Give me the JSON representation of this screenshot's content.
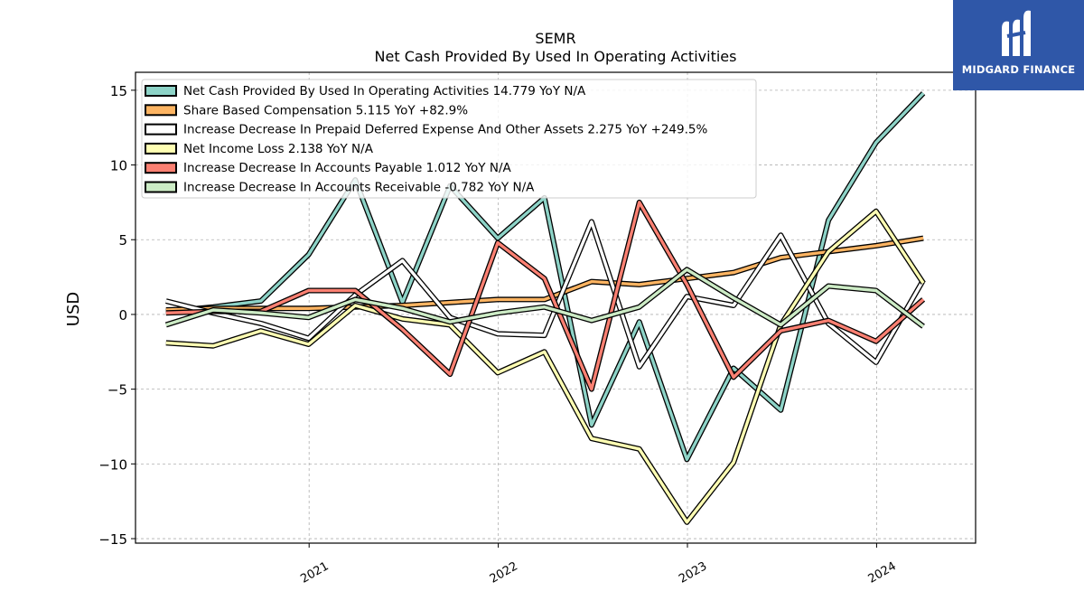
{
  "chart_data": {
    "type": "line",
    "title": "SEMR",
    "subtitle": "Net Cash Provided By Used In Operating Activities",
    "ylabel": "USD",
    "xlabel": "",
    "ylim": [
      -15.3,
      16.2
    ],
    "xlim": [
      "2020-02-01",
      "2024-07-10"
    ],
    "y_ticks": [
      15,
      10,
      5,
      0,
      -5,
      -10,
      -15
    ],
    "x_ticks": [
      {
        "date": "2021-01-01",
        "label": "2021"
      },
      {
        "date": "2022-01-01",
        "label": "2022"
      },
      {
        "date": "2023-01-01",
        "label": "2023"
      },
      {
        "date": "2024-01-01",
        "label": "2024"
      }
    ],
    "grid": true,
    "legend_position": "top-left",
    "x": [
      "2020-03-31",
      "2020-06-30",
      "2020-09-30",
      "2020-12-31",
      "2021-03-31",
      "2021-06-30",
      "2021-09-30",
      "2021-12-31",
      "2022-03-31",
      "2022-06-30",
      "2022-09-30",
      "2022-12-31",
      "2023-03-31",
      "2023-06-30",
      "2023-09-30",
      "2023-12-31",
      "2024-03-31"
    ],
    "series": [
      {
        "name": "Net Cash Provided By Used In Operating Activities",
        "legend": "Net Cash Provided By Used In Operating Activities  14.779 YoY N/A",
        "color": "#8dd3c7",
        "values": [
          0.2,
          0.5,
          0.9,
          4.0,
          9.0,
          0.8,
          8.6,
          5.1,
          7.8,
          -7.4,
          -0.5,
          -9.7,
          -3.6,
          -6.4,
          6.3,
          11.5,
          14.8
        ]
      },
      {
        "name": "Share Based Compensation",
        "legend": "Share Based Compensation  5.115 YoY +82.9%",
        "color": "#fdb462",
        "values": [
          0.3,
          0.4,
          0.4,
          0.4,
          0.5,
          0.6,
          0.8,
          1.0,
          1.0,
          2.2,
          2.0,
          2.4,
          2.8,
          3.8,
          4.2,
          4.6,
          5.1
        ]
      },
      {
        "name": "Increase Decrease In Prepaid Deferred Expense And Other Assets",
        "legend": "Increase Decrease In Prepaid Deferred Expense And Other Assets  2.275 YoY +249.5%",
        "color": "#ffffff",
        "values": [
          0.9,
          0.1,
          -0.6,
          -1.6,
          1.3,
          3.6,
          -0.2,
          -1.3,
          -1.4,
          6.2,
          -3.5,
          1.2,
          0.6,
          5.3,
          -0.6,
          -3.2,
          2.3
        ]
      },
      {
        "name": "Net Income Loss",
        "legend": "Net Income Loss  2.138 YoY N/A",
        "color": "#ffffb3",
        "values": [
          -1.9,
          -2.1,
          -1.1,
          -2.0,
          0.6,
          -0.3,
          -0.7,
          -3.9,
          -2.5,
          -8.3,
          -9.0,
          -13.9,
          -9.9,
          -0.7,
          4.2,
          6.9,
          2.1
        ]
      },
      {
        "name": "Increase Decrease In Accounts Payable",
        "legend": "Increase Decrease In Accounts Payable  1.012 YoY N/A",
        "color": "#fb8072",
        "values": [
          0.1,
          0.2,
          0.2,
          1.6,
          1.6,
          -1.0,
          -4.0,
          4.8,
          2.4,
          -5.0,
          7.5,
          2.0,
          -4.2,
          -1.1,
          -0.4,
          -1.8,
          1.0
        ]
      },
      {
        "name": "Increase Decrease In Accounts Receivable",
        "legend": "Increase Decrease In Accounts Receivable  -0.782 YoY N/A",
        "color": "#ccebc5",
        "values": [
          -0.7,
          0.3,
          0.1,
          -0.2,
          1.0,
          0.4,
          -0.5,
          0.1,
          0.5,
          -0.4,
          0.5,
          3.0,
          1.1,
          -0.7,
          1.9,
          1.6,
          -0.8
        ]
      }
    ]
  },
  "logo": {
    "text": "MIDGARD FINANCE",
    "bg_color": "#2f57a8"
  }
}
